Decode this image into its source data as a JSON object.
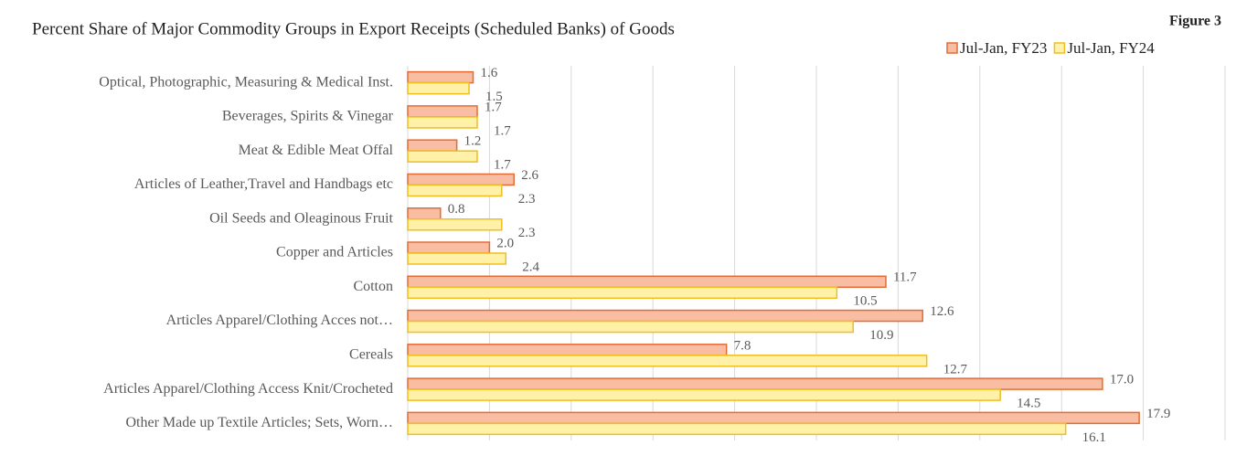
{
  "chart_data": {
    "type": "bar",
    "orientation": "horizontal",
    "title": "Percent Share of Major Commodity Groups in Export Receipts (Scheduled Banks) of Goods",
    "figure_label": "Figure 3",
    "categories": [
      "Optical, Photographic, Measuring & Medical Inst.",
      "Beverages, Spirits & Vinegar",
      "Meat & Edible Meat Offal",
      "Articles of Leather,Travel and Handbags etc",
      "Oil Seeds and Oleaginous Fruit",
      "Copper and Articles",
      "Cotton",
      "Articles Apparel/Clothing Acces not…",
      "Cereals",
      "Articles Apparel/Clothing Access Knit/Crocheted",
      "Other Made up Textile Articles; Sets, Worn…"
    ],
    "series": [
      {
        "name": "Jul-Jan, FY23",
        "color": "#f8bda2",
        "stroke": "#e46c34",
        "values": [
          1.6,
          1.7,
          1.2,
          2.6,
          0.8,
          2.0,
          11.7,
          12.6,
          7.8,
          17.0,
          17.9
        ],
        "value_labels": [
          "1.6",
          "1.7",
          "1.2",
          "2.6",
          "0.8",
          "2.0",
          "11.7",
          "12.6",
          "7.8",
          "17.0",
          "17.9"
        ]
      },
      {
        "name": "Jul-Jan, FY24",
        "color": "#fff2a8",
        "stroke": "#f0be1e",
        "values": [
          1.5,
          1.7,
          1.7,
          2.3,
          2.3,
          2.4,
          10.5,
          10.9,
          12.7,
          14.5,
          16.1
        ],
        "value_labels": [
          "1.5",
          "1.7",
          "1.7",
          "2.3",
          "2.3",
          "2.4",
          "10.5",
          "10.9",
          "12.7",
          "14.5",
          "16.1"
        ]
      }
    ],
    "xlim": [
      0,
      20
    ],
    "xticks": [
      0,
      2,
      4,
      6,
      8,
      10,
      12,
      14,
      16,
      18,
      20
    ],
    "grid": true,
    "legend": "top-right"
  }
}
